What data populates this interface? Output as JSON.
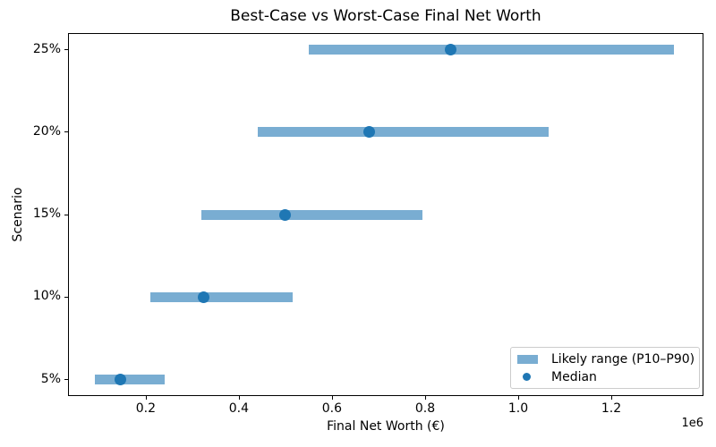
{
  "chart_data": {
    "type": "bar",
    "orientation": "horizontal",
    "title": "Best-Case vs Worst-Case Final Net Worth",
    "xlabel": "Final Net Worth (€)",
    "ylabel": "Scenario",
    "x_offset_text": "1e6",
    "categories": [
      "5%",
      "10%",
      "15%",
      "20%",
      "25%"
    ],
    "series": [
      {
        "name": "Likely range (P10–P90)",
        "type": "range_bar",
        "p10": [
          90000,
          210000,
          320000,
          440000,
          550000
        ],
        "p90": [
          240000,
          515000,
          795000,
          1065000,
          1335000
        ]
      },
      {
        "name": "Median",
        "type": "point",
        "values": [
          145000,
          325000,
          500000,
          680000,
          855000
        ]
      }
    ],
    "xlim": [
      33000,
      1398000
    ],
    "ylim": [
      -0.2,
      4.2
    ],
    "xticks": [
      200000,
      400000,
      600000,
      800000,
      1000000,
      1200000
    ],
    "xtick_labels": [
      "0.2",
      "0.4",
      "0.6",
      "0.8",
      "1.0",
      "1.2"
    ],
    "grid": false,
    "legend_position": "lower right",
    "colors": {
      "range_bar": "#79add2",
      "median": "#1f77b4",
      "spine": "#000000",
      "legend_border": "#cccccc"
    }
  }
}
